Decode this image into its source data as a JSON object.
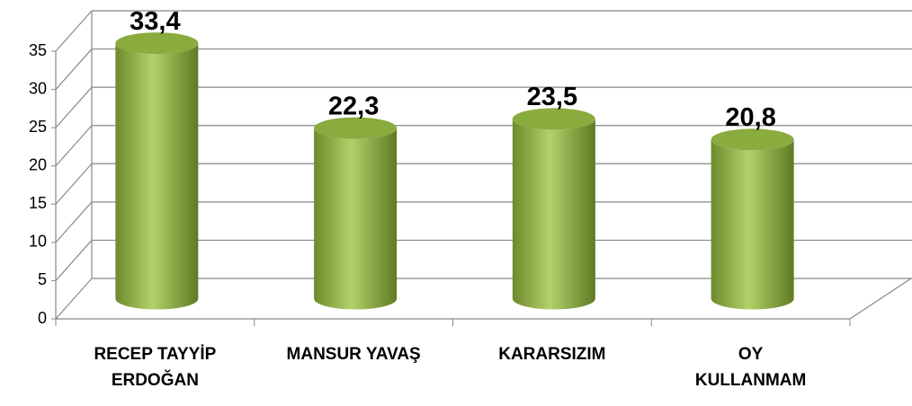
{
  "chart_data": {
    "type": "bar3d",
    "categories": [
      "RECEP TAYYİP\nERDOĞAN",
      "MANSUR YAVAŞ",
      "KARARSIZIM",
      "OY\nKULLANMAM"
    ],
    "values": [
      33.4,
      22.3,
      23.5,
      20.8
    ],
    "value_labels": [
      "33,4",
      "22,3",
      "23,5",
      "20,8"
    ],
    "color": "#9bbb59",
    "ylim": [
      0,
      35
    ],
    "yticks": [
      0,
      5,
      10,
      15,
      20,
      25,
      30,
      35
    ],
    "grid": true
  }
}
